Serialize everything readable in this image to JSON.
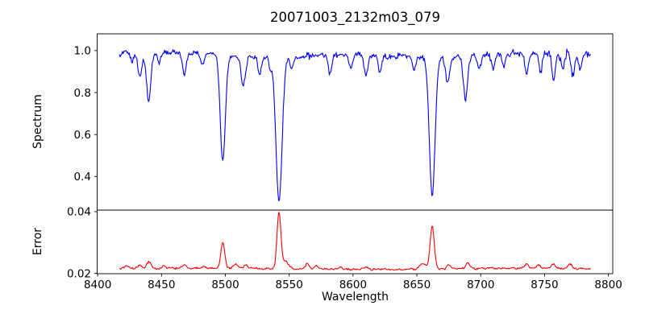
{
  "chart_data": {
    "type": "line",
    "title": "20071003_2132m03_079",
    "xlabel": "Wavelength",
    "grid": false,
    "legend": "none",
    "xlim": [
      8399.6,
      8803.4
    ],
    "x_range_data": [
      8417,
      8786
    ],
    "sample_step": 0.6,
    "xticks": [
      {
        "value": 8400,
        "label": "8400"
      },
      {
        "value": 8450,
        "label": "8450"
      },
      {
        "value": 8500,
        "label": "8500"
      },
      {
        "value": 8550,
        "label": "8550"
      },
      {
        "value": 8600,
        "label": "8600"
      },
      {
        "value": 8650,
        "label": "8650"
      },
      {
        "value": 8700,
        "label": "8700"
      },
      {
        "value": 8750,
        "label": "8750"
      },
      {
        "value": 8800,
        "label": "8800"
      }
    ],
    "panels": [
      {
        "name": "spectrum",
        "ylabel": "Spectrum",
        "ylim": [
          0.24,
          1.08
        ],
        "yticks": [
          {
            "value": 1.0,
            "label": "1.0"
          },
          {
            "value": 0.8,
            "label": "0.8"
          },
          {
            "value": 0.6,
            "label": "0.6"
          },
          {
            "value": 0.4,
            "label": "0.4"
          }
        ],
        "line_color": "#0000ff",
        "continuum_level": 0.978,
        "noise_amplitude": 0.018,
        "absorption_lines": [
          {
            "center": 8427,
            "depth": 0.04,
            "sigma": 1.1
          },
          {
            "center": 8433,
            "depth": 0.11,
            "sigma": 1.5
          },
          {
            "center": 8440,
            "depth": 0.23,
            "sigma": 1.7
          },
          {
            "center": 8448,
            "depth": 0.05,
            "sigma": 1.1
          },
          {
            "center": 8468,
            "depth": 0.1,
            "sigma": 1.5
          },
          {
            "center": 8482,
            "depth": 0.05,
            "sigma": 1.1
          },
          {
            "center": 8498,
            "depth": 0.5,
            "sigma": 2.0
          },
          {
            "center": 8514,
            "depth": 0.14,
            "sigma": 1.6
          },
          {
            "center": 8527,
            "depth": 0.08,
            "sigma": 1.3
          },
          {
            "center": 8535,
            "depth": 0.05,
            "sigma": 1.2
          },
          {
            "center": 8542,
            "depth": 0.7,
            "sigma": 2.4
          },
          {
            "center": 8552,
            "depth": 0.06,
            "sigma": 1.2
          },
          {
            "center": 8582,
            "depth": 0.09,
            "sigma": 1.4
          },
          {
            "center": 8598,
            "depth": 0.07,
            "sigma": 1.3
          },
          {
            "center": 8610,
            "depth": 0.1,
            "sigma": 1.4
          },
          {
            "center": 8621,
            "depth": 0.08,
            "sigma": 1.3
          },
          {
            "center": 8648,
            "depth": 0.06,
            "sigma": 1.2
          },
          {
            "center": 8662,
            "depth": 0.67,
            "sigma": 2.2
          },
          {
            "center": 8674,
            "depth": 0.12,
            "sigma": 1.5
          },
          {
            "center": 8688,
            "depth": 0.2,
            "sigma": 1.7
          },
          {
            "center": 8699,
            "depth": 0.06,
            "sigma": 1.2
          },
          {
            "center": 8710,
            "depth": 0.07,
            "sigma": 1.3
          },
          {
            "center": 8718,
            "depth": 0.06,
            "sigma": 1.2
          },
          {
            "center": 8736,
            "depth": 0.11,
            "sigma": 1.4
          },
          {
            "center": 8747,
            "depth": 0.09,
            "sigma": 1.3
          },
          {
            "center": 8757,
            "depth": 0.13,
            "sigma": 1.4
          },
          {
            "center": 8764,
            "depth": 0.08,
            "sigma": 1.2
          },
          {
            "center": 8772,
            "depth": 0.11,
            "sigma": 1.3
          },
          {
            "center": 8778,
            "depth": 0.07,
            "sigma": 1.2
          }
        ]
      },
      {
        "name": "error",
        "ylabel": "Error",
        "ylim": [
          0.0199,
          0.0405
        ],
        "yticks": [
          {
            "value": 0.04,
            "label": "0.04"
          },
          {
            "value": 0.02,
            "label": "0.02"
          }
        ],
        "line_color": "#ff0000",
        "baseline_level": 0.0215,
        "noise_amplitude": 0.00045,
        "peaks": [
          {
            "center": 8423,
            "height": 0.0009,
            "sigma": 2.0
          },
          {
            "center": 8433,
            "height": 0.001,
            "sigma": 1.5
          },
          {
            "center": 8440,
            "height": 0.0022,
            "sigma": 1.7
          },
          {
            "center": 8452,
            "height": 0.0008,
            "sigma": 1.4
          },
          {
            "center": 8468,
            "height": 0.0011,
            "sigma": 1.4
          },
          {
            "center": 8483,
            "height": 0.0007,
            "sigma": 1.4
          },
          {
            "center": 8498,
            "height": 0.0085,
            "sigma": 1.5
          },
          {
            "center": 8508,
            "height": 0.0013,
            "sigma": 1.4
          },
          {
            "center": 8516,
            "height": 0.0011,
            "sigma": 1.4
          },
          {
            "center": 8542,
            "height": 0.0185,
            "sigma": 1.5
          },
          {
            "center": 8547,
            "height": 0.0025,
            "sigma": 2.2
          },
          {
            "center": 8564,
            "height": 0.0017,
            "sigma": 1.4
          },
          {
            "center": 8571,
            "height": 0.0011,
            "sigma": 1.4
          },
          {
            "center": 8590,
            "height": 0.0007,
            "sigma": 1.4
          },
          {
            "center": 8610,
            "height": 0.0007,
            "sigma": 1.4
          },
          {
            "center": 8655,
            "height": 0.0018,
            "sigma": 2.4
          },
          {
            "center": 8662,
            "height": 0.014,
            "sigma": 1.6
          },
          {
            "center": 8675,
            "height": 0.0014,
            "sigma": 1.4
          },
          {
            "center": 8690,
            "height": 0.0017,
            "sigma": 1.4
          },
          {
            "center": 8736,
            "height": 0.0017,
            "sigma": 1.4
          },
          {
            "center": 8745,
            "height": 0.0011,
            "sigma": 1.4
          },
          {
            "center": 8757,
            "height": 0.0014,
            "sigma": 1.4
          },
          {
            "center": 8770,
            "height": 0.0013,
            "sigma": 1.4
          }
        ]
      }
    ]
  }
}
